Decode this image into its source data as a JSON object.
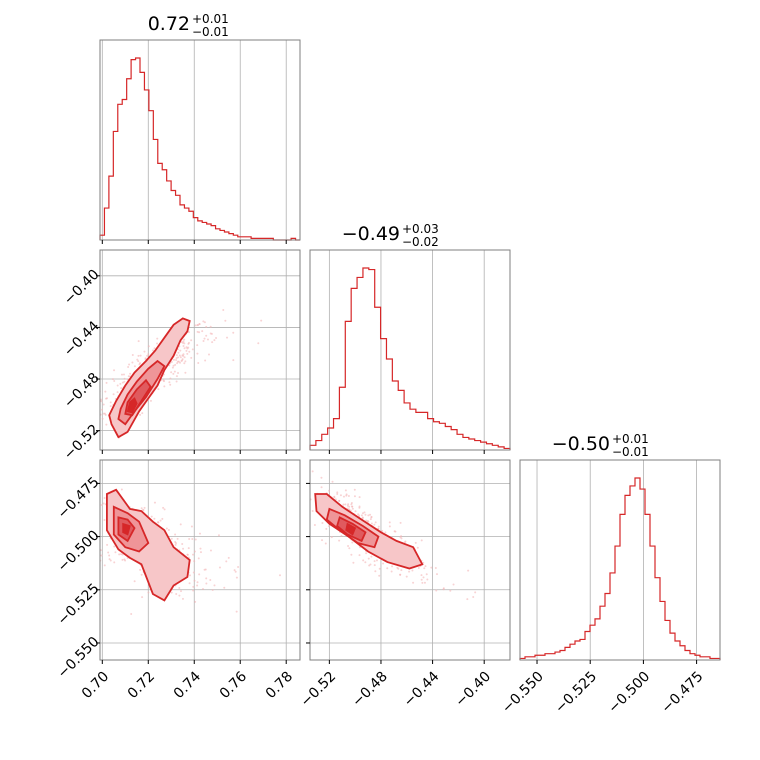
{
  "chart_data": {
    "type": "corner",
    "color": "#d62728",
    "parameters": [
      {
        "range": [
          0.699,
          0.786
        ],
        "ticks": [
          0.7,
          0.72,
          0.74,
          0.76,
          0.78
        ],
        "tick_labels": [
          "0.70",
          "0.72",
          "0.74",
          "0.76",
          "0.78"
        ],
        "title": {
          "main": "0.72",
          "plus": "+0.01",
          "minus": "−0.01"
        },
        "hist_values": [
          3,
          20,
          40,
          68,
          85,
          88,
          101,
          113,
          114,
          105,
          94,
          81,
          63,
          48,
          44,
          37,
          31,
          28,
          22,
          20,
          18,
          14,
          12,
          11,
          10,
          9,
          7,
          6,
          5,
          4,
          3,
          2,
          2,
          2,
          1,
          1,
          1,
          1,
          1,
          0,
          0,
          0,
          0,
          1,
          0
        ]
      },
      {
        "range": [
          -0.535,
          -0.38
        ],
        "ticks": [
          -0.52,
          -0.48,
          -0.44,
          -0.4
        ],
        "tick_labels": [
          "−0.52",
          "−0.48",
          "−0.44",
          "−0.40"
        ],
        "title": {
          "main": "−0.49",
          "plus": "+0.03",
          "minus": "−0.02"
        },
        "hist_values": [
          3,
          6,
          10,
          14,
          20,
          40,
          82,
          103,
          110,
          116,
          115,
          91,
          71,
          58,
          44,
          38,
          30,
          26,
          24,
          24,
          20,
          18,
          17,
          15,
          13,
          10,
          8,
          7,
          6,
          5,
          4,
          3,
          2,
          1
        ]
      },
      {
        "range": [
          -0.558,
          -0.464
        ],
        "ticks": [
          -0.55,
          -0.525,
          -0.5,
          -0.475
        ],
        "tick_labels": [
          "−0.550",
          "−0.525",
          "−0.500",
          "−0.475"
        ],
        "title": {
          "main": "−0.50",
          "plus": "+0.01",
          "minus": "−0.01"
        },
        "hist_values": [
          1,
          2,
          2,
          3,
          3,
          4,
          4,
          5,
          6,
          8,
          10,
          12,
          13,
          18,
          22,
          26,
          34,
          42,
          55,
          72,
          92,
          104,
          110,
          115,
          108,
          92,
          72,
          52,
          37,
          25,
          17,
          12,
          9,
          6,
          4,
          3,
          2,
          2,
          1,
          1
        ]
      }
    ],
    "pairs": [
      {
        "x_param": 0,
        "y_param": 1,
        "correlation": 0.85,
        "contours": [
          {
            "level": 1,
            "points": [
              [
                0.704,
                -0.515
              ],
              [
                0.707,
                -0.525
              ],
              [
                0.711,
                -0.521
              ],
              [
                0.716,
                -0.505
              ],
              [
                0.72,
                -0.495
              ],
              [
                0.724,
                -0.485
              ],
              [
                0.727,
                -0.473
              ],
              [
                0.731,
                -0.462
              ],
              [
                0.734,
                -0.45
              ],
              [
                0.737,
                -0.443
              ],
              [
                0.738,
                -0.435
              ],
              [
                0.735,
                -0.433
              ],
              [
                0.731,
                -0.438
              ],
              [
                0.727,
                -0.448
              ],
              [
                0.723,
                -0.458
              ],
              [
                0.719,
                -0.466
              ],
              [
                0.714,
                -0.475
              ],
              [
                0.71,
                -0.485
              ],
              [
                0.706,
                -0.497
              ],
              [
                0.703,
                -0.508
              ]
            ]
          },
          {
            "level": 2,
            "points": [
              [
                0.707,
                -0.511
              ],
              [
                0.71,
                -0.515
              ],
              [
                0.714,
                -0.505
              ],
              [
                0.719,
                -0.494
              ],
              [
                0.724,
                -0.48
              ],
              [
                0.727,
                -0.47
              ],
              [
                0.724,
                -0.466
              ],
              [
                0.72,
                -0.472
              ],
              [
                0.715,
                -0.482
              ],
              [
                0.711,
                -0.492
              ],
              [
                0.708,
                -0.503
              ]
            ]
          },
          {
            "level": 3,
            "points": [
              [
                0.71,
                -0.507
              ],
              [
                0.713,
                -0.508
              ],
              [
                0.717,
                -0.497
              ],
              [
                0.721,
                -0.486
              ],
              [
                0.719,
                -0.481
              ],
              [
                0.715,
                -0.488
              ],
              [
                0.711,
                -0.498
              ]
            ]
          },
          {
            "level": 4,
            "points": [
              [
                0.711,
                -0.505
              ],
              [
                0.713,
                -0.506
              ],
              [
                0.715,
                -0.499
              ],
              [
                0.714,
                -0.495
              ],
              [
                0.712,
                -0.498
              ]
            ]
          }
        ]
      },
      {
        "x_param": 0,
        "y_param": 2,
        "correlation": -0.6,
        "contours": [
          {
            "level": 1,
            "points": [
              [
                0.702,
                -0.48
              ],
              [
                0.706,
                -0.478
              ],
              [
                0.712,
                -0.487
              ],
              [
                0.717,
                -0.488
              ],
              [
                0.722,
                -0.493
              ],
              [
                0.727,
                -0.497
              ],
              [
                0.731,
                -0.505
              ],
              [
                0.738,
                -0.511
              ],
              [
                0.737,
                -0.519
              ],
              [
                0.731,
                -0.523
              ],
              [
                0.727,
                -0.53
              ],
              [
                0.722,
                -0.527
              ],
              [
                0.717,
                -0.513
              ],
              [
                0.712,
                -0.51
              ],
              [
                0.707,
                -0.506
              ],
              [
                0.702,
                -0.497
              ]
            ]
          },
          {
            "level": 2,
            "points": [
              [
                0.705,
                -0.486
              ],
              [
                0.711,
                -0.489
              ],
              [
                0.716,
                -0.493
              ],
              [
                0.72,
                -0.503
              ],
              [
                0.716,
                -0.507
              ],
              [
                0.71,
                -0.505
              ],
              [
                0.705,
                -0.499
              ]
            ]
          },
          {
            "level": 3,
            "points": [
              [
                0.707,
                -0.491
              ],
              [
                0.711,
                -0.492
              ],
              [
                0.714,
                -0.496
              ],
              [
                0.711,
                -0.502
              ],
              [
                0.707,
                -0.499
              ]
            ]
          },
          {
            "level": 4,
            "points": [
              [
                0.709,
                -0.494
              ],
              [
                0.712,
                -0.495
              ],
              [
                0.711,
                -0.499
              ],
              [
                0.709,
                -0.498
              ]
            ]
          }
        ]
      },
      {
        "x_param": 1,
        "y_param": 2,
        "correlation": -0.85,
        "contours": [
          {
            "level": 1,
            "points": [
              [
                -0.531,
                -0.48
              ],
              [
                -0.522,
                -0.48
              ],
              [
                -0.51,
                -0.486
              ],
              [
                -0.495,
                -0.492
              ],
              [
                -0.48,
                -0.498
              ],
              [
                -0.468,
                -0.502
              ],
              [
                -0.455,
                -0.505
              ],
              [
                -0.448,
                -0.513
              ],
              [
                -0.458,
                -0.515
              ],
              [
                -0.475,
                -0.512
              ],
              [
                -0.49,
                -0.507
              ],
              [
                -0.505,
                -0.5
              ],
              [
                -0.52,
                -0.494
              ],
              [
                -0.53,
                -0.488
              ]
            ]
          },
          {
            "level": 2,
            "points": [
              [
                -0.52,
                -0.487
              ],
              [
                -0.508,
                -0.49
              ],
              [
                -0.494,
                -0.495
              ],
              [
                -0.482,
                -0.5
              ],
              [
                -0.485,
                -0.505
              ],
              [
                -0.498,
                -0.503
              ],
              [
                -0.512,
                -0.497
              ],
              [
                -0.522,
                -0.492
              ]
            ]
          },
          {
            "level": 3,
            "points": [
              [
                -0.512,
                -0.491
              ],
              [
                -0.502,
                -0.494
              ],
              [
                -0.492,
                -0.498
              ],
              [
                -0.495,
                -0.502
              ],
              [
                -0.506,
                -0.499
              ],
              [
                -0.514,
                -0.495
              ]
            ]
          },
          {
            "level": 4,
            "points": [
              [
                -0.506,
                -0.494
              ],
              [
                -0.5,
                -0.496
              ],
              [
                -0.502,
                -0.499
              ],
              [
                -0.507,
                -0.497
              ]
            ]
          }
        ]
      }
    ]
  }
}
